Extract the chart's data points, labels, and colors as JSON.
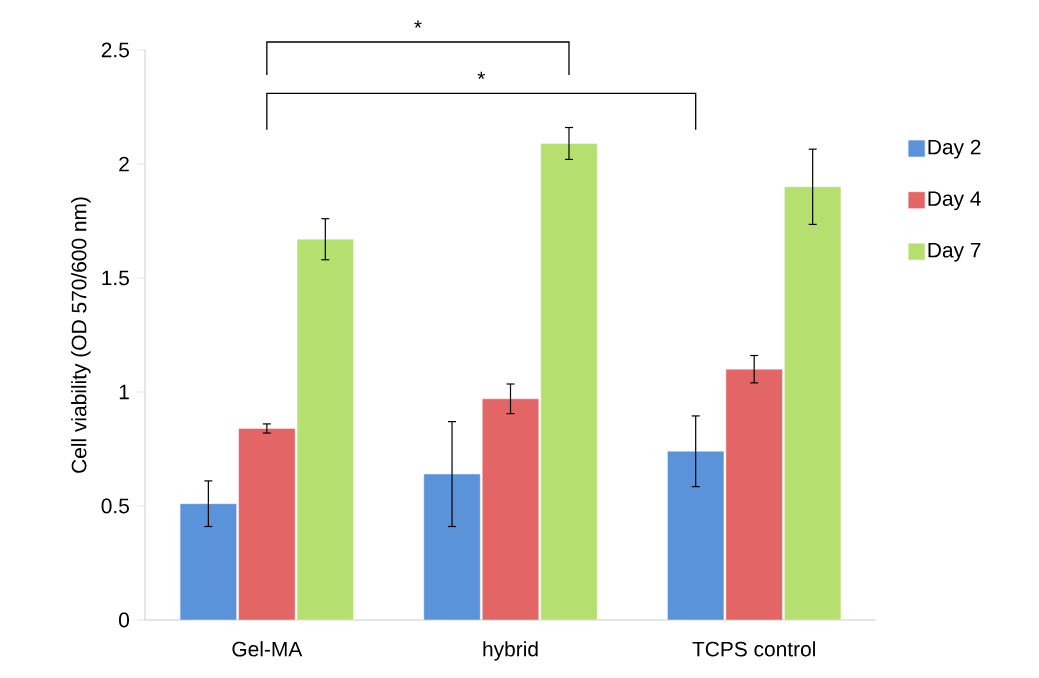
{
  "chart_data": {
    "type": "bar",
    "ylabel": "Cell viability (OD 570/600 nm)",
    "categories": [
      "Gel-MA",
      "hybrid",
      "TCPS control"
    ],
    "series": [
      {
        "name": "Day 2",
        "color": "#5b93db",
        "values": [
          0.51,
          0.64,
          0.74
        ],
        "errors": [
          0.1,
          0.23,
          0.155
        ]
      },
      {
        "name": "Day 4",
        "color": "#e46565",
        "values": [
          0.84,
          0.97,
          1.1
        ],
        "errors": [
          0.02,
          0.065,
          0.06
        ]
      },
      {
        "name": "Day 7",
        "color": "#b5e070",
        "values": [
          1.67,
          2.09,
          1.9
        ],
        "errors": [
          0.09,
          0.07,
          0.165
        ]
      }
    ],
    "ylim": [
      0,
      2.5
    ],
    "yticks": [
      0,
      0.5,
      1,
      1.5,
      2,
      2.5
    ],
    "legend": "right",
    "grid": false,
    "annotations": [
      "*",
      "*"
    ]
  }
}
